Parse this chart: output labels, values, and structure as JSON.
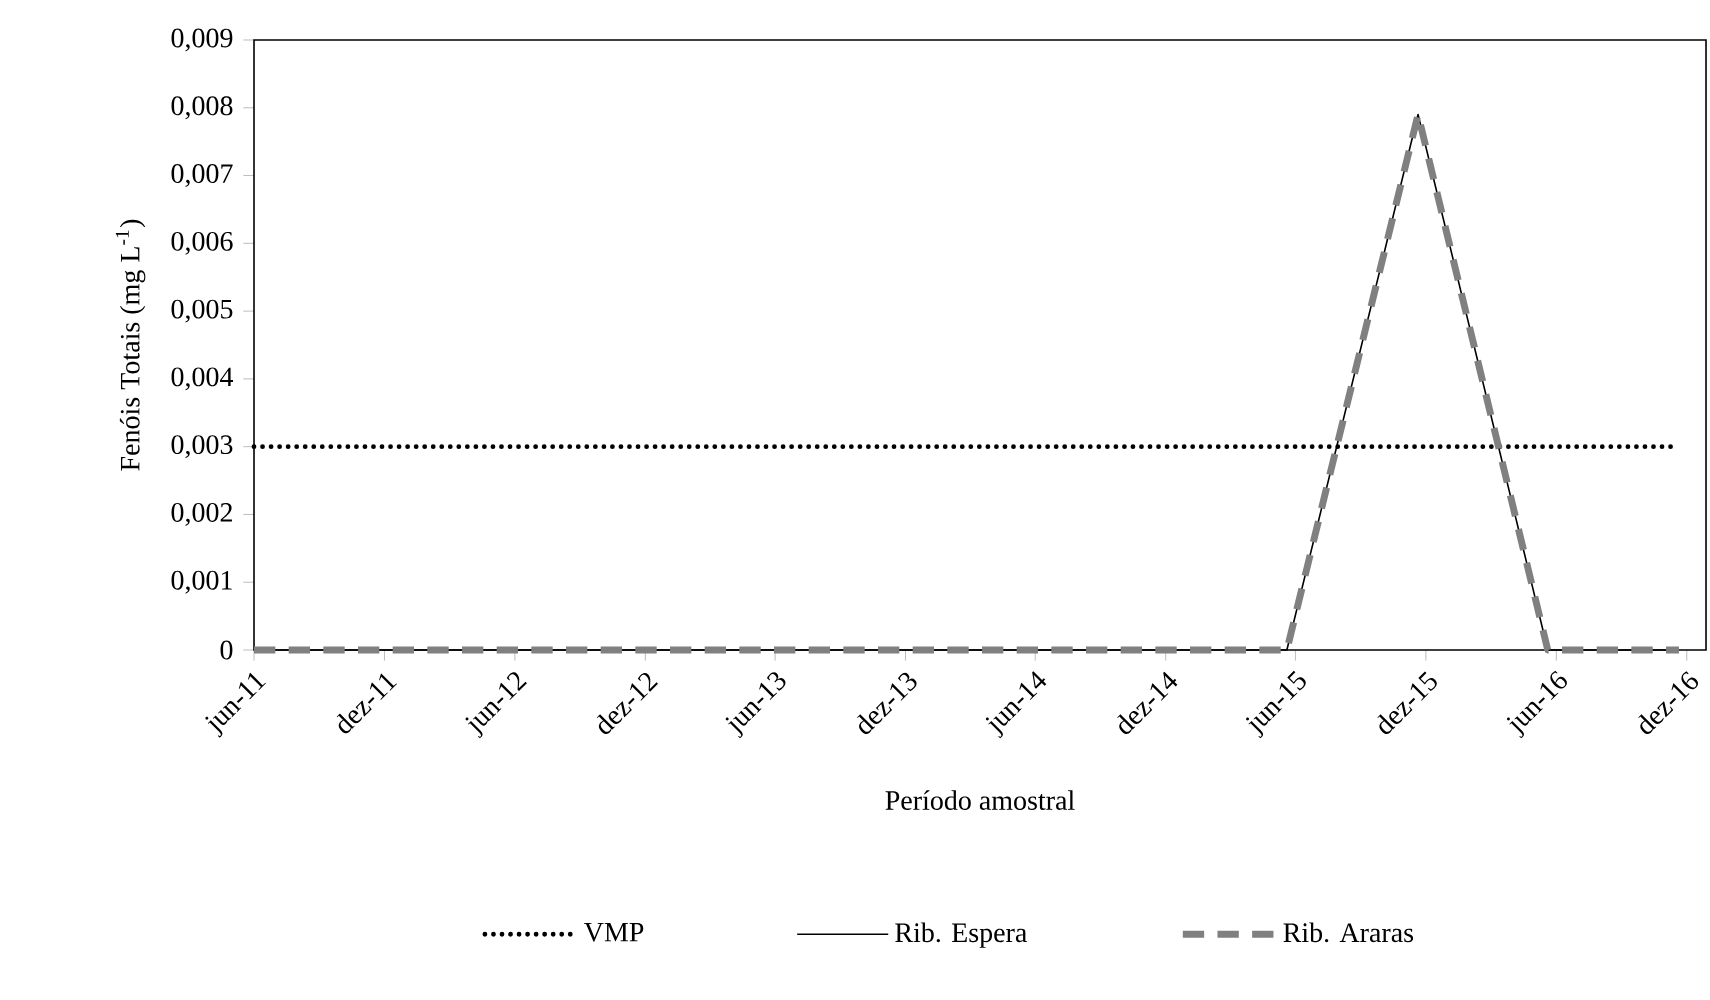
{
  "chart_data": {
    "type": "line",
    "xlabel": "Período amostral",
    "ylabel": "Fenóis Totais (mg L$^{-1}$)",
    "series": [
      {
        "name": "VMP",
        "color": "#000000",
        "line_style": "dotted",
        "x": [
          "2011-06-01",
          "2016-11-20"
        ],
        "values": [
          0.003,
          0.003
        ]
      },
      {
        "name": "Rib. Espera",
        "color": "#000000",
        "line_style": "solid",
        "x": [
          "2011-06-01",
          "2015-05-20",
          "2015-11-20",
          "2016-05-20",
          "2016-11-20"
        ],
        "values": [
          0,
          0,
          0.0079,
          0,
          0
        ]
      },
      {
        "name": "Rib. Araras",
        "color": "#808080",
        "line_style": "dashed",
        "x": [
          "2011-06-01",
          "2015-05-20",
          "2015-11-20",
          "2016-05-20",
          "2016-11-20"
        ],
        "values": [
          0,
          0,
          0.0079,
          0,
          0
        ]
      }
    ],
    "xlim": [
      "2011-06-01",
      "2016-12-28"
    ],
    "xticks": [
      {
        "value": "2011-06",
        "label": "jun-11"
      },
      {
        "value": "2011-12",
        "label": "dez-11"
      },
      {
        "value": "2012-06",
        "label": "jun-12"
      },
      {
        "value": "2012-12",
        "label": "dez-12"
      },
      {
        "value": "2013-06",
        "label": "jun-13"
      },
      {
        "value": "2013-12",
        "label": "dez-13"
      },
      {
        "value": "2014-06",
        "label": "jun-14"
      },
      {
        "value": "2014-12",
        "label": "dez-14"
      },
      {
        "value": "2015-06",
        "label": "jun-15"
      },
      {
        "value": "2015-12",
        "label": "dez-15"
      },
      {
        "value": "2016-06",
        "label": "jun-16"
      },
      {
        "value": "2016-12",
        "label": "dez-16"
      }
    ],
    "ylim": [
      0,
      0.009
    ],
    "yticks": [
      0,
      {
        "value": 0.001,
        "label": "0,001"
      },
      {
        "value": 0.002,
        "label": "0,002"
      },
      {
        "value": 0.003,
        "label": "0,003"
      },
      {
        "value": 0.004,
        "label": "0,004"
      },
      {
        "value": 0.005,
        "label": "0,005"
      },
      {
        "value": 0.006,
        "label": "0,006"
      },
      {
        "value": 0.007,
        "label": "0,007"
      },
      {
        "value": 0.008,
        "label": "0,008"
      },
      {
        "value": 0.009,
        "label": "0,009"
      }
    ],
    "grid": false,
    "legend": "bottom",
    "marker": "none"
  }
}
